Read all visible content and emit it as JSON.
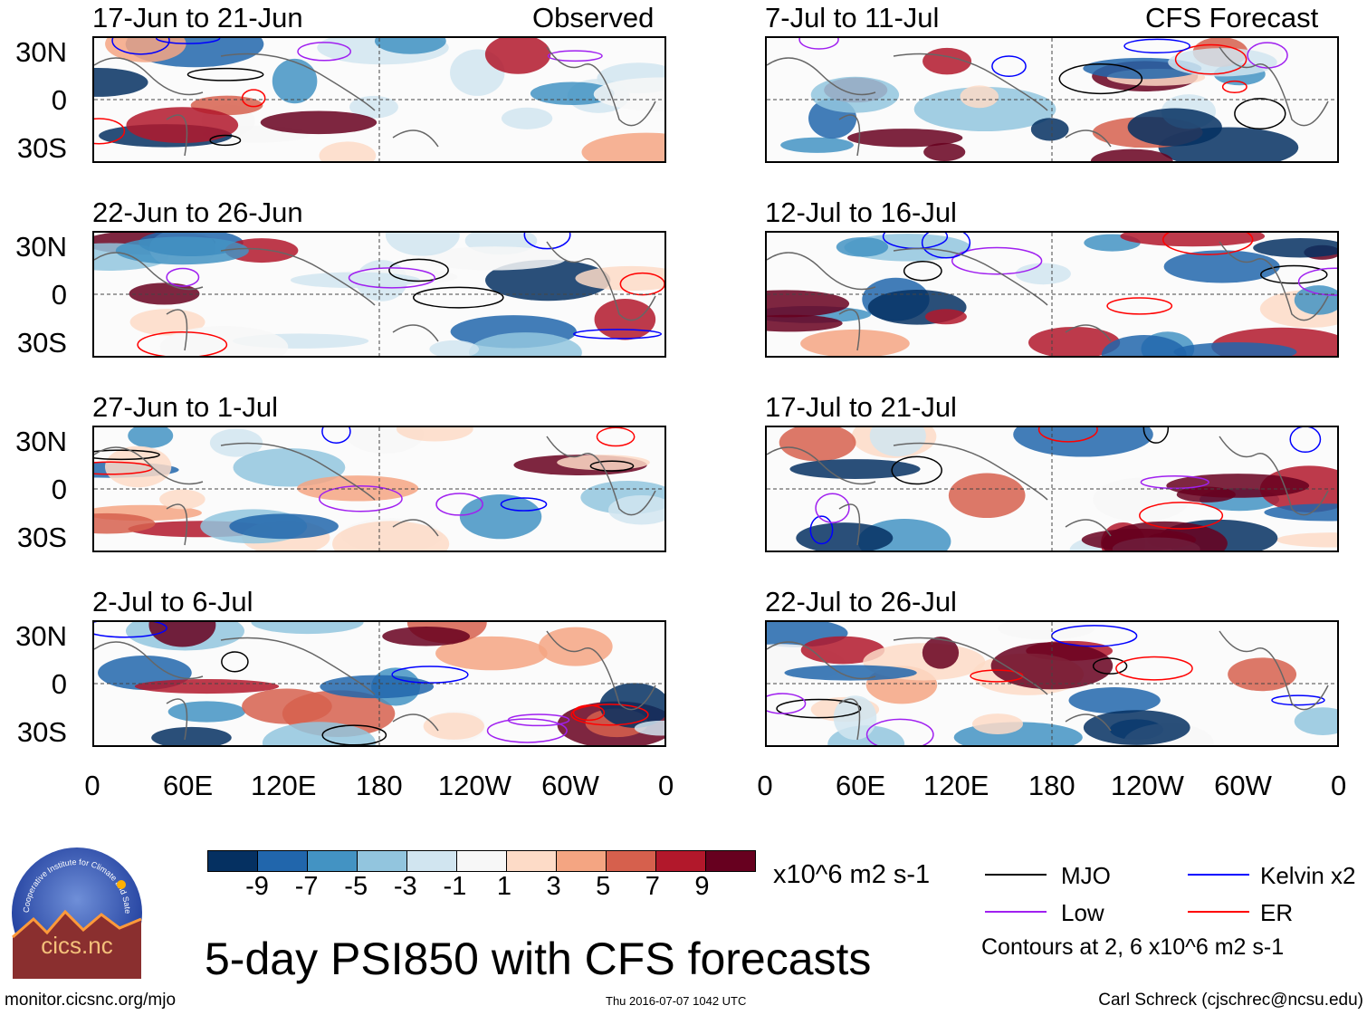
{
  "title": "5-day PSI850 with CFS forecasts",
  "footer": {
    "url": "monitor.cicsnc.org/mjo",
    "timestamp": "Thu 2016-07-07 1042 UTC",
    "author": "Carl Schreck (cjschrec@ncsu.edu)"
  },
  "logo": {
    "arc_text": "Cooperative Institute for Climate and Satellites",
    "name": "cics.nc"
  },
  "headers": {
    "observed": "Observed",
    "forecast": "CFS Forecast"
  },
  "lat_labels": [
    "30N",
    "0",
    "30S"
  ],
  "lon_labels": [
    "0",
    "60E",
    "120E",
    "180",
    "120W",
    "60W",
    "0"
  ],
  "colorbar": {
    "units": "x10^6 m2 s-1",
    "ticks": [
      "-9",
      "-7",
      "-5",
      "-3",
      "-1",
      "1",
      "3",
      "5",
      "7",
      "9"
    ],
    "colors": [
      "#053061",
      "#2166ac",
      "#4393c3",
      "#92c5de",
      "#d1e5f0",
      "#f7f7f7",
      "#fddbc7",
      "#f4a582",
      "#d6604d",
      "#b2182b",
      "#67001f"
    ]
  },
  "legend": {
    "items": [
      {
        "label": "MJO",
        "color": "#000000"
      },
      {
        "label": "Kelvin x2",
        "color": "#0000ff"
      },
      {
        "label": "Low",
        "color": "#a020f0"
      },
      {
        "label": "ER",
        "color": "#ff0000"
      }
    ],
    "note": "Contours at 2, 6 x10^6 m2 s-1"
  },
  "chart_data": {
    "type": "heatmap",
    "variable": "5-day PSI850 anomaly",
    "units": "x10^6 m2 s-1",
    "xlim": [
      "0",
      "0"
    ],
    "ylim": [
      "30S",
      "30N"
    ],
    "panels": [
      {
        "label": "17-Jun to 21-Jun",
        "kind": "Observed"
      },
      {
        "label": "22-Jun to 26-Jun",
        "kind": "Observed"
      },
      {
        "label": "27-Jun to 1-Jul",
        "kind": "Observed"
      },
      {
        "label": "2-Jul to 6-Jul",
        "kind": "Observed"
      },
      {
        "label": "7-Jul to 11-Jul",
        "kind": "CFS Forecast"
      },
      {
        "label": "12-Jul to 16-Jul",
        "kind": "CFS Forecast"
      },
      {
        "label": "17-Jul to 21-Jul",
        "kind": "CFS Forecast"
      },
      {
        "label": "22-Jul to 26-Jul",
        "kind": "CFS Forecast"
      }
    ]
  }
}
